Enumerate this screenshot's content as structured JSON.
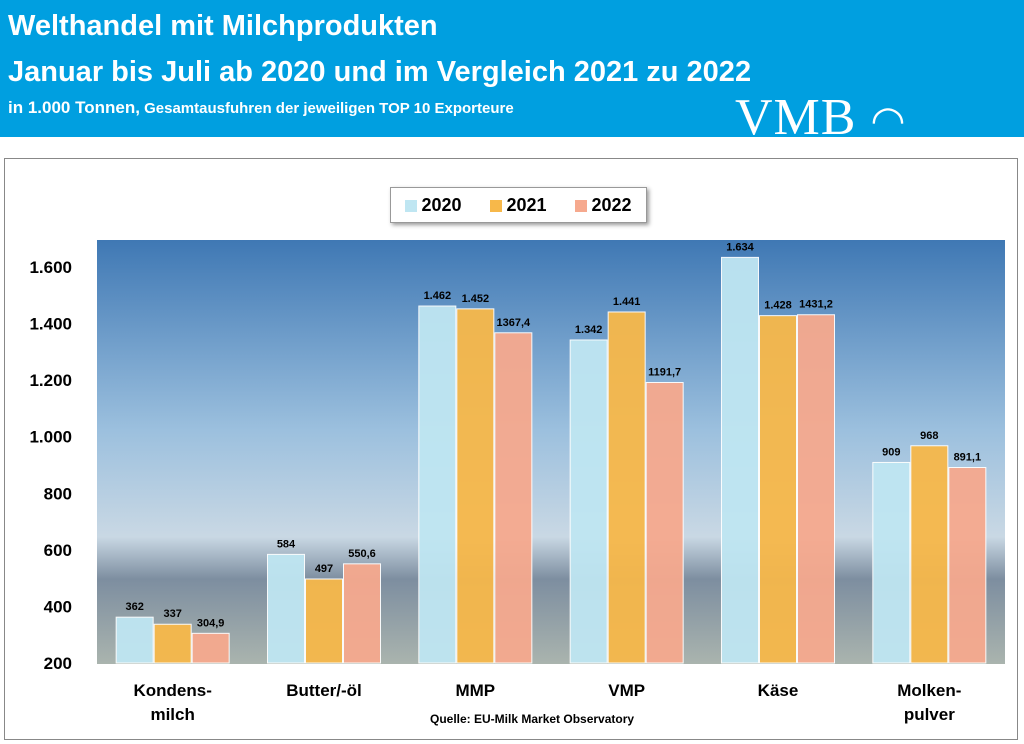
{
  "header": {
    "title": "Welthandel mit Milchprodukten",
    "subtitle": "Januar bis Juli ab 2020 und im Vergleich 2021 zu 2022",
    "note_unit": "in 1.000 Tonnen,",
    "note_rest": " Gesamtausfuhren der jeweiligen TOP 10 Exporteure",
    "logo": "VMB"
  },
  "source": "Quelle: EU-Milk Market Observatory",
  "chart_data": {
    "type": "bar",
    "categories": [
      "Kondens-\nmilch",
      "Butter/-öl",
      "MMP",
      "VMP",
      "Käse",
      "Molken-\npulver"
    ],
    "series": [
      {
        "name": "2020",
        "values": [
          362,
          584,
          1462,
          1342,
          1634,
          909
        ],
        "labels": [
          "362",
          "584",
          "1.462",
          "1.342",
          "1.634",
          "909"
        ],
        "color": "#bfe6f2"
      },
      {
        "name": "2021",
        "values": [
          337,
          497,
          1452,
          1441,
          1428,
          968
        ],
        "labels": [
          "337",
          "497",
          "1.452",
          "1.441",
          "1.428",
          "968"
        ],
        "color": "#f7b84a"
      },
      {
        "name": "2022",
        "values": [
          304.9,
          550.6,
          1367.4,
          1191.7,
          1431.2,
          891.1
        ],
        "labels": [
          "304,9",
          "550,6",
          "1367,4",
          "1191,7",
          "1431,2",
          "891,1"
        ],
        "color": "#f6a98e"
      }
    ],
    "yticks": [
      "200",
      "400",
      "600",
      "800",
      "1.000",
      "1.200",
      "1.400",
      "1.600"
    ],
    "ylim": [
      200,
      1700
    ],
    "legend": "top",
    "grid": false
  }
}
